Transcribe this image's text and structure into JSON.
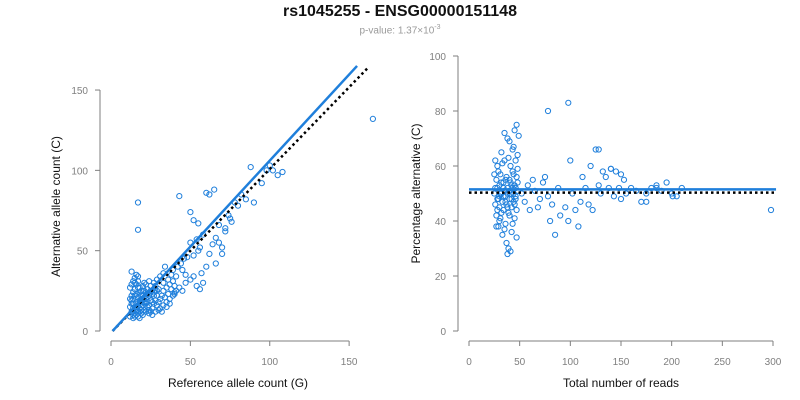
{
  "title": "rs1045255 - ENSG00000151148",
  "subtitle_prefix": "p-value: 1.37×10",
  "subtitle_exp": "-3",
  "colors": {
    "accent": "#1f7fdb",
    "axis": "#7f7f7f",
    "reference_line": "#000000"
  },
  "chart_data": [
    {
      "type": "scatter",
      "xlabel": "Reference allele count (G)",
      "ylabel": "Alternative allele count (C)",
      "xlim": [
        0,
        160
      ],
      "ylim": [
        0,
        155
      ],
      "xticks": [
        "0",
        "50",
        "100",
        "150"
      ],
      "yticks": [
        "0",
        "50",
        "100",
        "150"
      ],
      "fit_line": {
        "x": [
          1,
          155
        ],
        "y": [
          0,
          165
        ],
        "color": "#1f7fdb",
        "style": "solid"
      },
      "reference_line": {
        "x": [
          1,
          162
        ],
        "y": [
          0,
          164
        ],
        "color": "#000000",
        "style": "dotted"
      },
      "points": [
        [
          12,
          9
        ],
        [
          13,
          12
        ],
        [
          14,
          10
        ],
        [
          15,
          11
        ],
        [
          16,
          13
        ],
        [
          17,
          12
        ],
        [
          18,
          14
        ],
        [
          19,
          15
        ],
        [
          20,
          16
        ],
        [
          21,
          18
        ],
        [
          22,
          20
        ],
        [
          23,
          21
        ],
        [
          24,
          22
        ],
        [
          25,
          19
        ],
        [
          26,
          23
        ],
        [
          27,
          24
        ],
        [
          28,
          25
        ],
        [
          29,
          22
        ],
        [
          30,
          26
        ],
        [
          12,
          15
        ],
        [
          13,
          17
        ],
        [
          14,
          20
        ],
        [
          15,
          22
        ],
        [
          16,
          18
        ],
        [
          17,
          21
        ],
        [
          18,
          24
        ],
        [
          19,
          20
        ],
        [
          20,
          22
        ],
        [
          21,
          25
        ],
        [
          22,
          17
        ],
        [
          23,
          15
        ],
        [
          24,
          13
        ],
        [
          25,
          12
        ],
        [
          26,
          14
        ],
        [
          27,
          17
        ],
        [
          28,
          19
        ],
        [
          29,
          16
        ],
        [
          30,
          18
        ],
        [
          12,
          20
        ],
        [
          13,
          22
        ],
        [
          14,
          24
        ],
        [
          15,
          26
        ],
        [
          16,
          23
        ],
        [
          17,
          27
        ],
        [
          18,
          19
        ],
        [
          19,
          25
        ],
        [
          20,
          28
        ],
        [
          21,
          30
        ],
        [
          22,
          24
        ],
        [
          23,
          26
        ],
        [
          14,
          14
        ],
        [
          15,
          15
        ],
        [
          16,
          17
        ],
        [
          17,
          16
        ],
        [
          18,
          18
        ],
        [
          19,
          19
        ],
        [
          20,
          20
        ],
        [
          21,
          21
        ],
        [
          22,
          22
        ],
        [
          23,
          23
        ],
        [
          12,
          27
        ],
        [
          13,
          29
        ],
        [
          14,
          31
        ],
        [
          15,
          33
        ],
        [
          16,
          35
        ],
        [
          13,
          37
        ],
        [
          17,
          34
        ],
        [
          15,
          30
        ],
        [
          16,
          29
        ],
        [
          17,
          31
        ],
        [
          18,
          12
        ],
        [
          19,
          11
        ],
        [
          20,
          10
        ],
        [
          21,
          13
        ],
        [
          22,
          12
        ],
        [
          24,
          11
        ],
        [
          26,
          10
        ],
        [
          28,
          12
        ],
        [
          30,
          13
        ],
        [
          32,
          12
        ],
        [
          31,
          20
        ],
        [
          32,
          22
        ],
        [
          33,
          25
        ],
        [
          34,
          21
        ],
        [
          35,
          27
        ],
        [
          36,
          23
        ],
        [
          37,
          29
        ],
        [
          38,
          26
        ],
        [
          39,
          31
        ],
        [
          40,
          28
        ],
        [
          31,
          14
        ],
        [
          33,
          16
        ],
        [
          35,
          18
        ],
        [
          37,
          20
        ],
        [
          39,
          22
        ],
        [
          25,
          28
        ],
        [
          27,
          30
        ],
        [
          29,
          32
        ],
        [
          31,
          34
        ],
        [
          33,
          36
        ],
        [
          35,
          15
        ],
        [
          37,
          17
        ],
        [
          40,
          24
        ],
        [
          18,
          8
        ],
        [
          16,
          10
        ],
        [
          14,
          8
        ],
        [
          20,
          12
        ],
        [
          24,
          16
        ],
        [
          26,
          18
        ],
        [
          28,
          28
        ],
        [
          42,
          40
        ],
        [
          44,
          42
        ],
        [
          45,
          38
        ],
        [
          46,
          45
        ],
        [
          47,
          35
        ],
        [
          48,
          46
        ],
        [
          50,
          55
        ],
        [
          52,
          47
        ],
        [
          54,
          57
        ],
        [
          55,
          50
        ],
        [
          56,
          52
        ],
        [
          58,
          60
        ],
        [
          60,
          40
        ],
        [
          62,
          48
        ],
        [
          64,
          54
        ],
        [
          66,
          58
        ],
        [
          68,
          66
        ],
        [
          70,
          52
        ],
        [
          72,
          64
        ],
        [
          75,
          70
        ],
        [
          78,
          80
        ],
        [
          80,
          78
        ],
        [
          82,
          85
        ],
        [
          85,
          82
        ],
        [
          88,
          102
        ],
        [
          90,
          80
        ],
        [
          95,
          92
        ],
        [
          98,
          100
        ],
        [
          100,
          103
        ],
        [
          105,
          97
        ],
        [
          108,
          99
        ],
        [
          102,
          100
        ],
        [
          165,
          132
        ],
        [
          17,
          80
        ],
        [
          17,
          63
        ],
        [
          43,
          84
        ],
        [
          50,
          74
        ],
        [
          52,
          69
        ],
        [
          55,
          67
        ],
        [
          57,
          36
        ],
        [
          58,
          30
        ],
        [
          60,
          86
        ],
        [
          62,
          85
        ],
        [
          65,
          88
        ],
        [
          66,
          42
        ],
        [
          68,
          55
        ],
        [
          70,
          48
        ],
        [
          72,
          62
        ],
        [
          74,
          72
        ],
        [
          76,
          68
        ],
        [
          45,
          25
        ],
        [
          47,
          30
        ],
        [
          50,
          32
        ],
        [
          52,
          34
        ],
        [
          54,
          28
        ],
        [
          56,
          26
        ],
        [
          40,
          23
        ],
        [
          41,
          25
        ],
        [
          43,
          27
        ],
        [
          36,
          32
        ],
        [
          38,
          35
        ],
        [
          39,
          38
        ],
        [
          41,
          34
        ],
        [
          33,
          30
        ],
        [
          34,
          40
        ],
        [
          29,
          25
        ],
        [
          27,
          22
        ],
        [
          25,
          25
        ],
        [
          23,
          18
        ],
        [
          20,
          25
        ],
        [
          19,
          22
        ],
        [
          18,
          27
        ],
        [
          22,
          29
        ],
        [
          24,
          31
        ],
        [
          14,
          17
        ],
        [
          13,
          19
        ],
        [
          15,
          9
        ],
        [
          17,
          9
        ],
        [
          19,
          13
        ],
        [
          21,
          15
        ]
      ]
    },
    {
      "type": "scatter",
      "xlabel": "Total number of reads",
      "ylabel": "Percentage alternative (C)",
      "xlim": [
        0,
        300
      ],
      "ylim": [
        0,
        100
      ],
      "xticks": [
        "0",
        "50",
        "100",
        "150",
        "200",
        "250",
        "300"
      ],
      "yticks": [
        "0",
        "20",
        "40",
        "60",
        "80",
        "100"
      ],
      "fit_line": {
        "x": [
          0,
          303
        ],
        "y": [
          51.5,
          51.5
        ],
        "color": "#1f7fdb",
        "style": "solid"
      },
      "reference_line": {
        "x": [
          0,
          303
        ],
        "y": [
          50.3,
          50.3
        ],
        "color": "#000000",
        "style": "dotted"
      },
      "points": [
        [
          25,
          50
        ],
        [
          26,
          46
        ],
        [
          27,
          55
        ],
        [
          27,
          42
        ],
        [
          28,
          52
        ],
        [
          28,
          60
        ],
        [
          29,
          48
        ],
        [
          29,
          38
        ],
        [
          30,
          53
        ],
        [
          30,
          45
        ],
        [
          31,
          57
        ],
        [
          31,
          41
        ],
        [
          32,
          50
        ],
        [
          32,
          65
        ],
        [
          33,
          47
        ],
        [
          33,
          35
        ],
        [
          34,
          54
        ],
        [
          34,
          44
        ],
        [
          35,
          51
        ],
        [
          35,
          62
        ],
        [
          36,
          49
        ],
        [
          36,
          39
        ],
        [
          37,
          56
        ],
        [
          37,
          46
        ],
        [
          38,
          52
        ],
        [
          38,
          70
        ],
        [
          39,
          43
        ],
        [
          39,
          30
        ],
        [
          40,
          55
        ],
        [
          40,
          48
        ],
        [
          41,
          50
        ],
        [
          41,
          60
        ],
        [
          42,
          45
        ],
        [
          42,
          36
        ],
        [
          43,
          58
        ],
        [
          43,
          52
        ],
        [
          44,
          47
        ],
        [
          44,
          67
        ],
        [
          45,
          53
        ],
        [
          45,
          41
        ],
        [
          46,
          49
        ],
        [
          46,
          62
        ],
        [
          47,
          56
        ],
        [
          47,
          44
        ],
        [
          48,
          51
        ],
        [
          48,
          64
        ],
        [
          25,
          57
        ],
        [
          26,
          62
        ],
        [
          27,
          38
        ],
        [
          28,
          44
        ],
        [
          29,
          58
        ],
        [
          30,
          40
        ],
        [
          31,
          50
        ],
        [
          32,
          43
        ],
        [
          33,
          61
        ],
        [
          34,
          49
        ],
        [
          35,
          37
        ],
        [
          36,
          55
        ],
        [
          37,
          32
        ],
        [
          38,
          45
        ],
        [
          39,
          63
        ],
        [
          40,
          42
        ],
        [
          41,
          54
        ],
        [
          42,
          48
        ],
        [
          43,
          39
        ],
        [
          44,
          57
        ],
        [
          45,
          46
        ],
        [
          46,
          52
        ],
        [
          47,
          34
        ],
        [
          48,
          59
        ],
        [
          26,
          52
        ],
        [
          28,
          48
        ],
        [
          30,
          49
        ],
        [
          32,
          54
        ],
        [
          34,
          52
        ],
        [
          36,
          47
        ],
        [
          38,
          50
        ],
        [
          40,
          51
        ],
        [
          42,
          53
        ],
        [
          44,
          50
        ],
        [
          46,
          48
        ],
        [
          48,
          54
        ],
        [
          35,
          72
        ],
        [
          38,
          28
        ],
        [
          41,
          29
        ],
        [
          40,
          69
        ],
        [
          43,
          66
        ],
        [
          45,
          73
        ],
        [
          47,
          75
        ],
        [
          49,
          71
        ],
        [
          52,
          50
        ],
        [
          55,
          47
        ],
        [
          58,
          53
        ],
        [
          60,
          44
        ],
        [
          63,
          55
        ],
        [
          65,
          51
        ],
        [
          68,
          45
        ],
        [
          70,
          48
        ],
        [
          73,
          54
        ],
        [
          75,
          56
        ],
        [
          78,
          49
        ],
        [
          80,
          40
        ],
        [
          82,
          46
        ],
        [
          85,
          35
        ],
        [
          88,
          52
        ],
        [
          90,
          42
        ],
        [
          95,
          45
        ],
        [
          98,
          40
        ],
        [
          100,
          62
        ],
        [
          102,
          50
        ],
        [
          105,
          44
        ],
        [
          108,
          38
        ],
        [
          110,
          47
        ],
        [
          112,
          56
        ],
        [
          115,
          52
        ],
        [
          118,
          46
        ],
        [
          120,
          60
        ],
        [
          122,
          44
        ],
        [
          125,
          66
        ],
        [
          128,
          53
        ],
        [
          130,
          50
        ],
        [
          135,
          56
        ],
        [
          138,
          52
        ],
        [
          140,
          59
        ],
        [
          143,
          49
        ],
        [
          145,
          58
        ],
        [
          148,
          52
        ],
        [
          150,
          48
        ],
        [
          153,
          55
        ],
        [
          155,
          50
        ],
        [
          160,
          52
        ],
        [
          165,
          51
        ],
        [
          170,
          47
        ],
        [
          175,
          50
        ],
        [
          180,
          52
        ],
        [
          185,
          53
        ],
        [
          190,
          51
        ],
        [
          195,
          54
        ],
        [
          200,
          50
        ],
        [
          205,
          49
        ],
        [
          210,
          52
        ],
        [
          78,
          80
        ],
        [
          98,
          83
        ],
        [
          140,
          59
        ],
        [
          150,
          57
        ],
        [
          175,
          47
        ],
        [
          185,
          52
        ],
        [
          201,
          49
        ],
        [
          298,
          44
        ],
        [
          132,
          58
        ],
        [
          128,
          66
        ]
      ]
    }
  ]
}
